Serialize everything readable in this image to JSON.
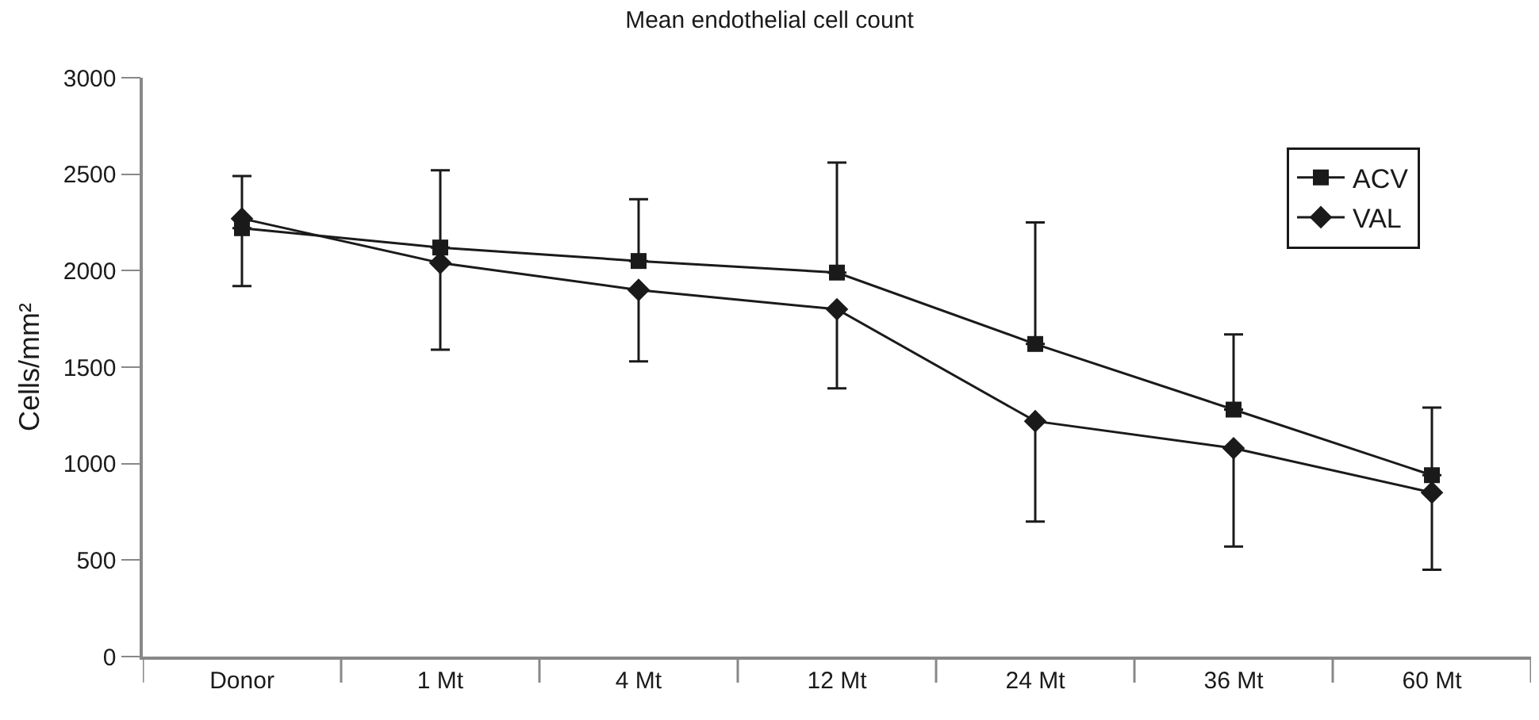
{
  "chart_data": {
    "type": "line",
    "title": "Mean endothelial cell count",
    "ylabel": "Cells/mm²",
    "categories": [
      "Donor",
      "1 Mt",
      "4 Mt",
      "12 Mt",
      "24 Mt",
      "36 Mt",
      "60 Mt"
    ],
    "series": [
      {
        "name": "ACV",
        "color": "#1a1a1a",
        "marker": "square",
        "values": [
          2220,
          2120,
          2050,
          1990,
          1620,
          1280,
          940
        ],
        "errors": [
          [
            2220,
            2490
          ],
          [
            2120,
            2520
          ],
          [
            2050,
            2370
          ],
          [
            1990,
            2560
          ],
          [
            1620,
            2250
          ],
          [
            1280,
            1670
          ],
          [
            940,
            1290
          ]
        ]
      },
      {
        "name": "VAL",
        "color": "#1a1a1a",
        "marker": "diamond",
        "values": [
          2270,
          2040,
          1900,
          1800,
          1220,
          1080,
          850
        ],
        "errors": [
          [
            1920,
            2270
          ],
          [
            1590,
            2040
          ],
          [
            1530,
            1900
          ],
          [
            1390,
            1800
          ],
          [
            700,
            1220
          ],
          [
            570,
            1080
          ],
          [
            450,
            850
          ]
        ]
      }
    ],
    "ylim": [
      0,
      3000
    ],
    "yticks": [
      0,
      500,
      1000,
      1500,
      2000,
      2500,
      3000
    ],
    "legend": "top right",
    "line_style": "solid"
  }
}
